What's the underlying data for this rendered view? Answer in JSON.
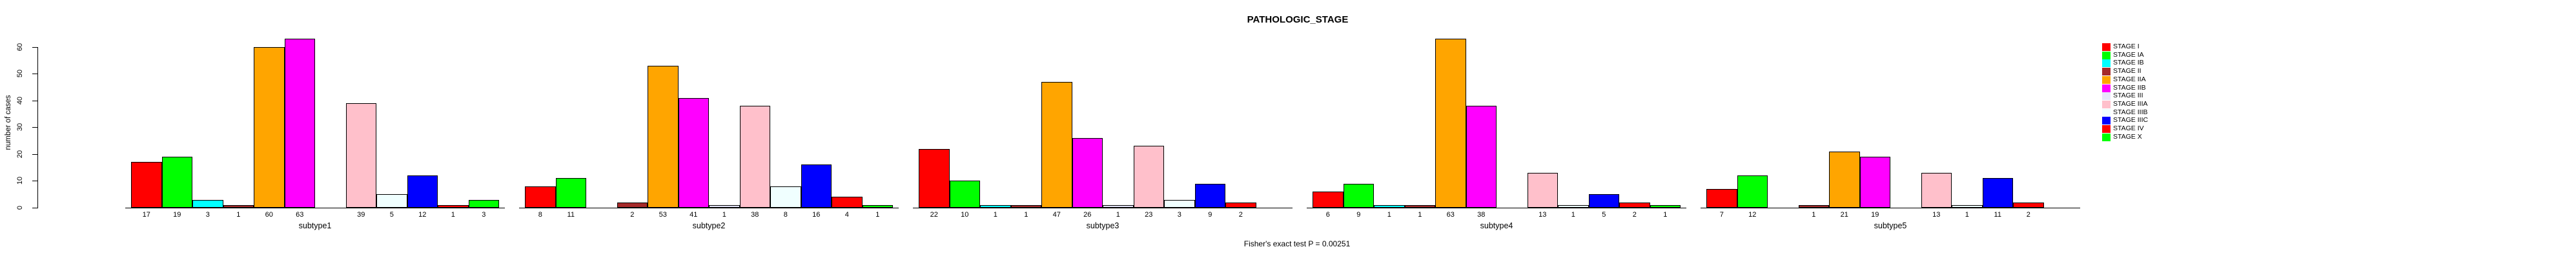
{
  "chart_data": {
    "type": "bar",
    "title": "PATHOLOGIC_STAGE",
    "ylabel": "number of cases",
    "caption": "Fisher's exact test P = 0.00251",
    "ylim": [
      0,
      60
    ],
    "yticks": [
      0,
      10,
      20,
      30,
      40,
      50,
      60
    ],
    "grid": false,
    "legend_position": "right-of-plot",
    "stages": [
      {
        "label": "STAGE I",
        "color": "#FF0000"
      },
      {
        "label": "STAGE IA",
        "color": "#00FF00"
      },
      {
        "label": "STAGE IB",
        "color": "#00FFFF"
      },
      {
        "label": "STAGE II",
        "color": "#A52A2A"
      },
      {
        "label": "STAGE IIA",
        "color": "#FFA500"
      },
      {
        "label": "STAGE IIB",
        "color": "#FF00FF"
      },
      {
        "label": "STAGE III",
        "color": "#E6E6FA"
      },
      {
        "label": "STAGE IIIA",
        "color": "#FFC0CB"
      },
      {
        "label": "STAGE IIIB",
        "color": "#F0FFFF"
      },
      {
        "label": "STAGE IIIC",
        "color": "#0000FF"
      },
      {
        "label": "STAGE IV",
        "color": "#FF0000"
      },
      {
        "label": "STAGE X",
        "color": "#00FF00"
      }
    ],
    "groups": [
      {
        "label": "subtype1",
        "values": [
          17,
          19,
          3,
          1,
          60,
          63,
          0,
          39,
          5,
          12,
          1,
          3
        ]
      },
      {
        "label": "subtype2",
        "values": [
          8,
          11,
          0,
          2,
          53,
          41,
          1,
          38,
          8,
          16,
          4,
          1
        ]
      },
      {
        "label": "subtype3",
        "values": [
          22,
          10,
          1,
          1,
          47,
          26,
          1,
          23,
          3,
          9,
          2,
          0
        ]
      },
      {
        "label": "subtype4",
        "values": [
          6,
          9,
          1,
          1,
          63,
          38,
          0,
          13,
          1,
          5,
          2,
          1
        ]
      },
      {
        "label": "subtype5",
        "values": [
          7,
          12,
          0,
          1,
          21,
          19,
          0,
          13,
          1,
          11,
          2,
          0
        ]
      }
    ]
  }
}
